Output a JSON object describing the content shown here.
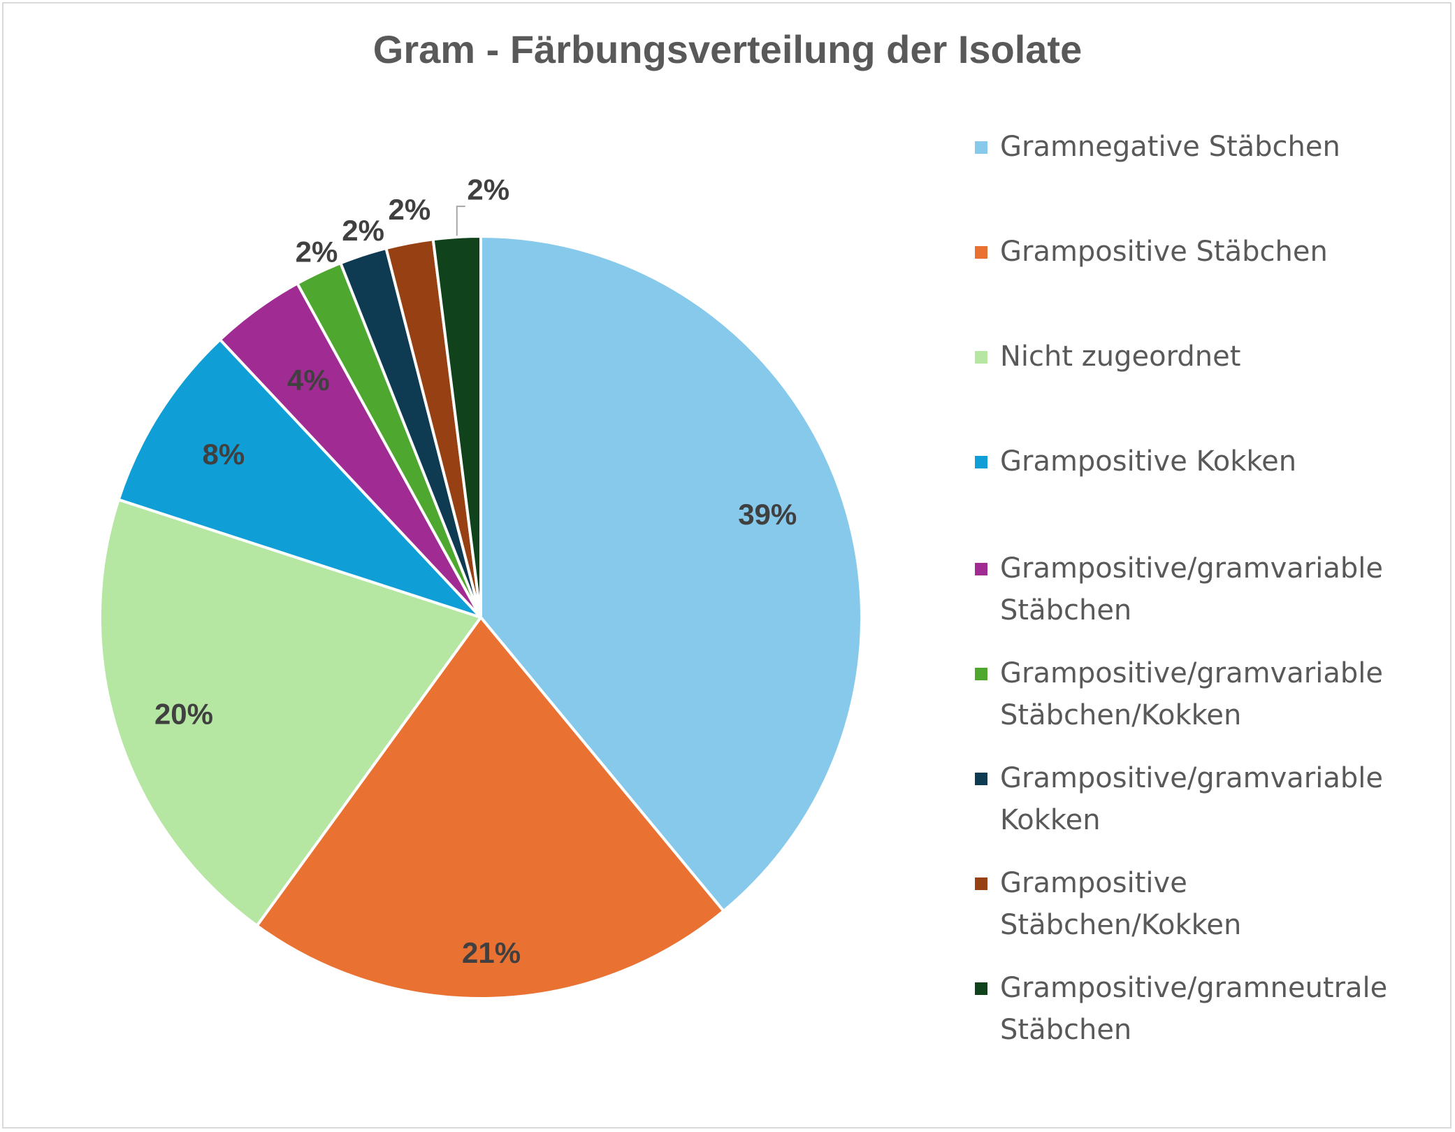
{
  "chart_data": {
    "type": "pie",
    "title": "Gram - Färbungsverteilung der Isolate",
    "legend_position": "right",
    "categories": [
      "Gramnegative Stäbchen",
      "Grampositive Stäbchen",
      "Nicht zugeordnet",
      "Grampositive Kokken",
      "Grampositive/gramvariable Stäbchen",
      "Grampositive/gramvariable Stäbchen/Kokken",
      "Grampositive/gramvariable Kokken",
      "Grampositive Stäbchen/Kokken",
      "Grampositive/gramneutrale Stäbchen"
    ],
    "values": [
      39,
      21,
      20,
      8,
      4,
      2,
      2,
      2,
      2
    ],
    "labels": [
      "39%",
      "21%",
      "20%",
      "8%",
      "4%",
      "2%",
      "2%",
      "2%",
      "2%"
    ],
    "colors": [
      "#86c9ea",
      "#e97132",
      "#b5e6a2",
      "#0f9ed5",
      "#a02b93",
      "#4ea72e",
      "#0e3a52",
      "#964013",
      "#10421c"
    ]
  }
}
